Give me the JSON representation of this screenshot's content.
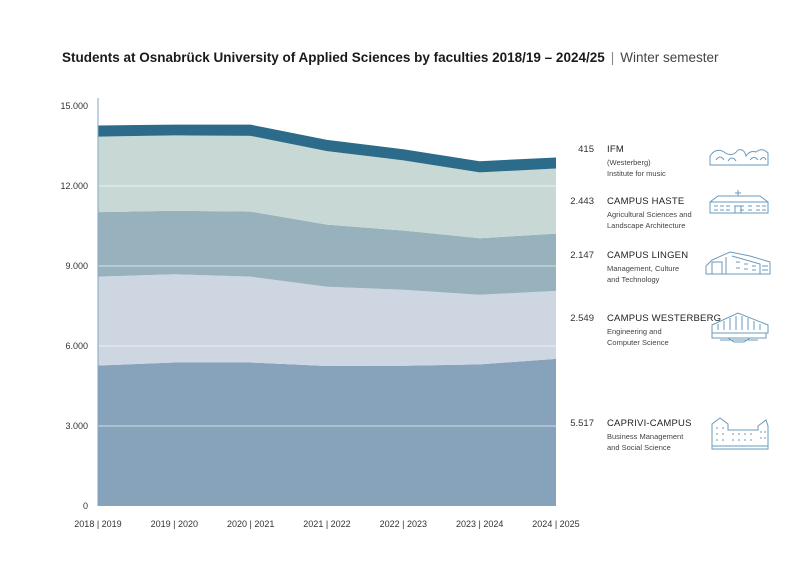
{
  "title": {
    "main": "Students at Osnabrück University of Applied Sciences by faculties 2018/19 – 2024/25",
    "separator": "|",
    "sub": "Winter semester"
  },
  "chart_data": {
    "type": "area",
    "stacked": true,
    "categories": [
      "2018 | 2019",
      "2019 | 2020",
      "2020 | 2021",
      "2021 | 2022",
      "2022 | 2023",
      "2023 | 2024",
      "2024 | 2025"
    ],
    "y_ticks": [
      "0",
      "3.000",
      "6.000",
      "9.000",
      "12.000",
      "15.000"
    ],
    "y_tick_values": [
      0,
      3000,
      6000,
      9000,
      12000,
      15000
    ],
    "ylim": [
      0,
      15000
    ],
    "grid": true,
    "legend": "right",
    "series": [
      {
        "name": "CAPRIVI-CAMPUS",
        "value_label": "5.517",
        "description": [
          "Business Management",
          "and Social Science"
        ],
        "color": "#86a3bb",
        "icon": "caprivi-campus-building-icon",
        "values": [
          5270,
          5380,
          5380,
          5250,
          5260,
          5310,
          5517
        ]
      },
      {
        "name": "CAMPUS WESTERBERG",
        "value_label": "2.549",
        "description": [
          "Engineering and",
          "Computer Science"
        ],
        "color": "#ced6e2",
        "icon": "campus-westerberg-building-icon",
        "values": [
          3330,
          3310,
          3220,
          2970,
          2850,
          2610,
          2549
        ]
      },
      {
        "name": "CAMPUS LINGEN",
        "value_label": "2.147",
        "description": [
          "Management, Culture",
          "and Technology"
        ],
        "color": "#97b1bd",
        "icon": "campus-lingen-building-icon",
        "values": [
          2420,
          2380,
          2440,
          2330,
          2220,
          2120,
          2147
        ]
      },
      {
        "name": "CAMPUS HASTE",
        "value_label": "2.443",
        "description": [
          "Agricultural Sciences and",
          "Landscape Architecture"
        ],
        "color": "#c8d9d5",
        "icon": "campus-haste-building-icon",
        "values": [
          2830,
          2830,
          2840,
          2760,
          2630,
          2470,
          2443
        ]
      },
      {
        "name": "IFM",
        "value_label": "415",
        "description": [
          "(Westerberg)",
          "Institute for music"
        ],
        "color": "#2c6b8a",
        "icon": "ifm-building-icon",
        "values": [
          420,
          400,
          420,
          420,
          420,
          420,
          415
        ]
      }
    ]
  }
}
